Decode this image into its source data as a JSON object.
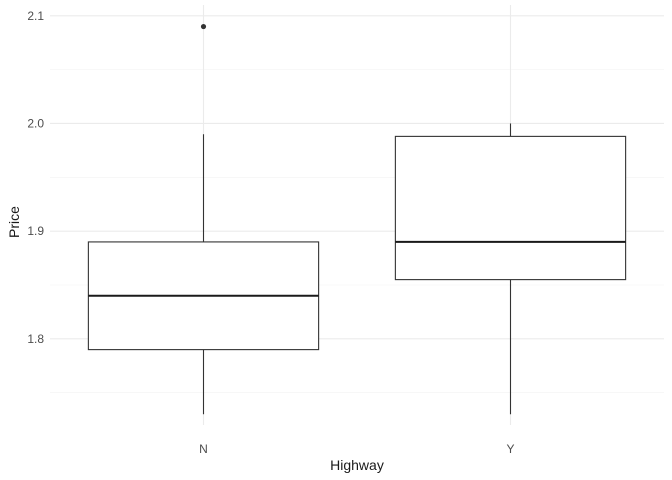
{
  "chart_data": {
    "type": "boxplot",
    "xlabel": "Highway",
    "ylabel": "Price",
    "categories": [
      "N",
      "Y"
    ],
    "ylim": [
      1.72,
      2.11
    ],
    "y_ticks": [
      1.8,
      1.9,
      2.0,
      2.1
    ],
    "y_tick_labels": [
      "1.8",
      "1.9",
      "2.0",
      "2.1"
    ],
    "grid": true,
    "boxes": [
      {
        "category": "N",
        "whisker_low": 1.73,
        "q1": 1.79,
        "median": 1.84,
        "q3": 1.89,
        "whisker_high": 1.99,
        "outliers": [
          2.09
        ]
      },
      {
        "category": "Y",
        "whisker_low": 1.73,
        "q1": 1.855,
        "median": 1.89,
        "q3": 1.988,
        "whisker_high": 2.0,
        "outliers": []
      }
    ],
    "colors": {
      "box_fill": "#ffffff",
      "box_stroke": "#333333",
      "grid": "#ebebeb"
    }
  }
}
